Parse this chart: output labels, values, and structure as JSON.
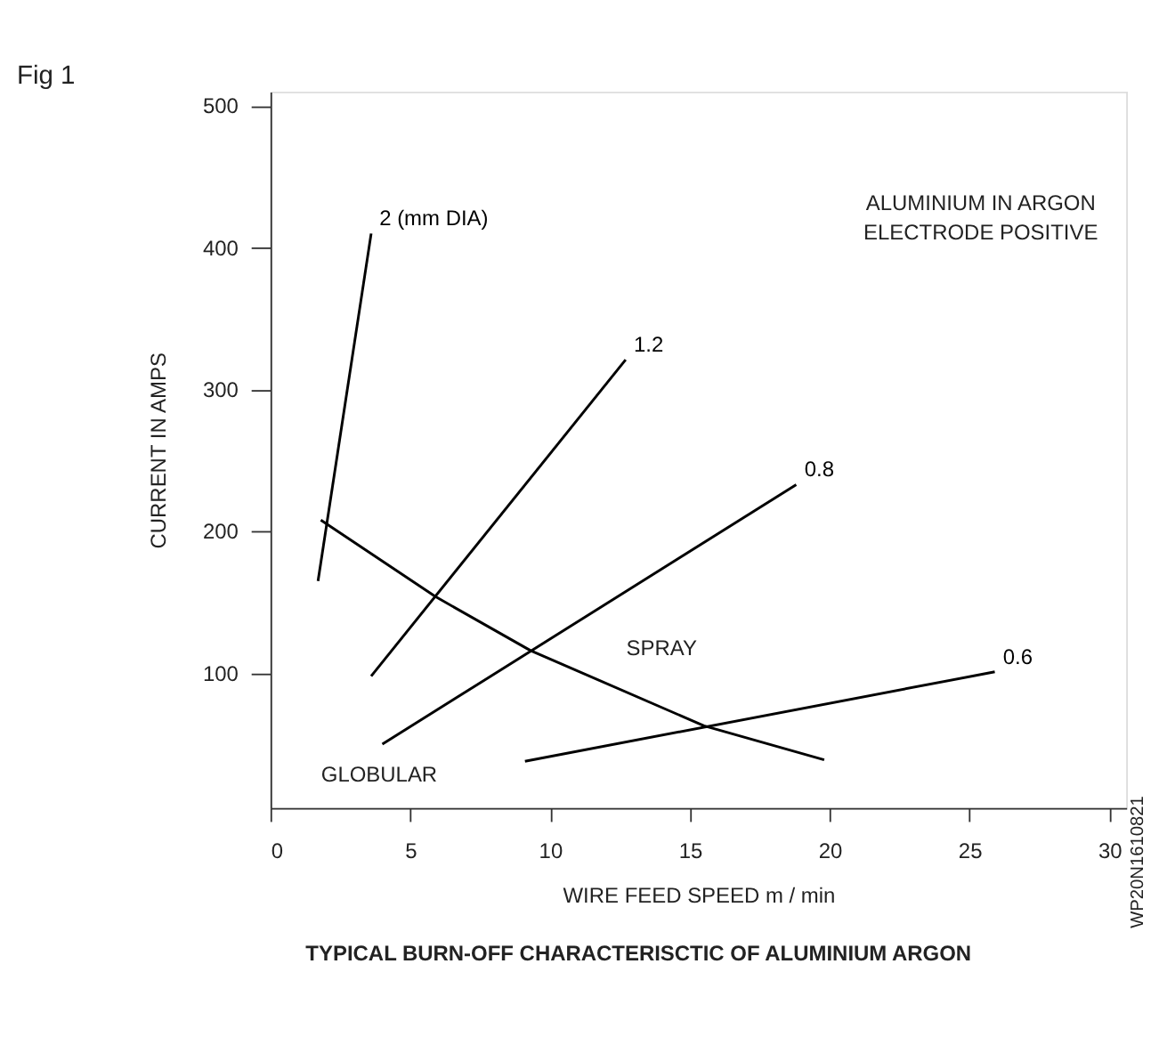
{
  "chart_data": {
    "type": "line",
    "title": "Fig 1",
    "xlabel": "WIRE FEED SPEED   m / min",
    "ylabel": "CURRENT IN AMPS",
    "xlim": [
      0,
      30.6
    ],
    "ylim": [
      5,
      510
    ],
    "xticks": [
      0,
      5,
      10,
      15,
      20,
      25,
      30
    ],
    "yticks": [
      100,
      200,
      300,
      400,
      500
    ],
    "grid": false,
    "marker": "none",
    "line_style": "solid",
    "series": [
      {
        "name": "2 (mm DIA)",
        "color": "#000000",
        "x": [
          1.7,
          3.6
        ],
        "values": [
          165,
          410
        ]
      },
      {
        "name": "1.2",
        "color": "#000000",
        "x": [
          3.6,
          12.7
        ],
        "values": [
          98,
          321
        ]
      },
      {
        "name": "0.8",
        "color": "#000000",
        "x": [
          4.0,
          18.8
        ],
        "values": [
          50,
          233
        ]
      },
      {
        "name": "0.6",
        "color": "#000000",
        "x": [
          9.1,
          25.9
        ],
        "values": [
          38,
          101
        ]
      },
      {
        "color": "#000000",
        "x": [
          1.8,
          5.9,
          9.3,
          15.5,
          19.8
        ],
        "values": [
          208,
          154,
          116,
          63,
          39
        ]
      }
    ],
    "annotations": [
      "SPRAY",
      "GLOBULAR",
      "ALUMINIUM IN ARGON\nELECTRODE POSITIVE",
      "TYPICAL BURN-OFF CHARACTERISCTIC OF ALUMINIUM ARGON",
      "WP20N1610821"
    ]
  }
}
